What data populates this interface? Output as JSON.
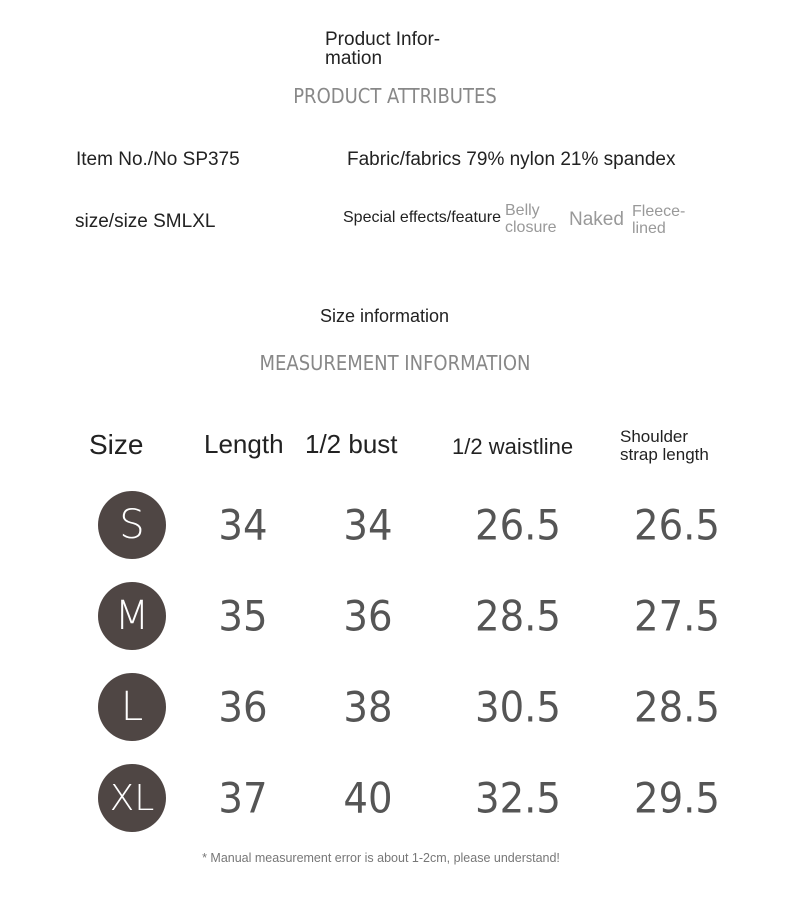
{
  "product_info": {
    "title_line1": "Product Infor-",
    "title_line2": "mation",
    "subtitle": "PRODUCT ATTRIBUTES",
    "item_no": "Item No./No SP375",
    "fabric": "Fabric/fabrics 79% nylon 21% spandex",
    "size": "size/size SMLXL",
    "special_label": "Special effects/feature",
    "features": [
      {
        "line1": "Belly",
        "line2": "closure"
      },
      {
        "line1": "Naked",
        "line2": ""
      },
      {
        "line1": "Fleece-",
        "line2": "lined"
      }
    ]
  },
  "size_info": {
    "title": "Size information",
    "subtitle": "MEASUREMENT INFORMATION",
    "headers": [
      "Size",
      "Length",
      "1/2 bust",
      "1/2 waistline",
      "Shoulder",
      "strap length"
    ],
    "rows": [
      {
        "size": "S",
        "length": "34",
        "bust": "34",
        "waist": "26.5",
        "shoulder": "26.5"
      },
      {
        "size": "M",
        "length": "35",
        "bust": "36",
        "waist": "28.5",
        "shoulder": "27.5"
      },
      {
        "size": "L",
        "length": "36",
        "bust": "38",
        "waist": "30.5",
        "shoulder": "28.5"
      },
      {
        "size": "XL",
        "length": "37",
        "bust": "40",
        "waist": "32.5",
        "shoulder": "29.5"
      }
    ],
    "note": "* Manual measurement error is about 1-2cm, please understand!"
  },
  "colors": {
    "size_badge": "#4f4644",
    "values": "#555555",
    "section_heading": "#888888"
  }
}
